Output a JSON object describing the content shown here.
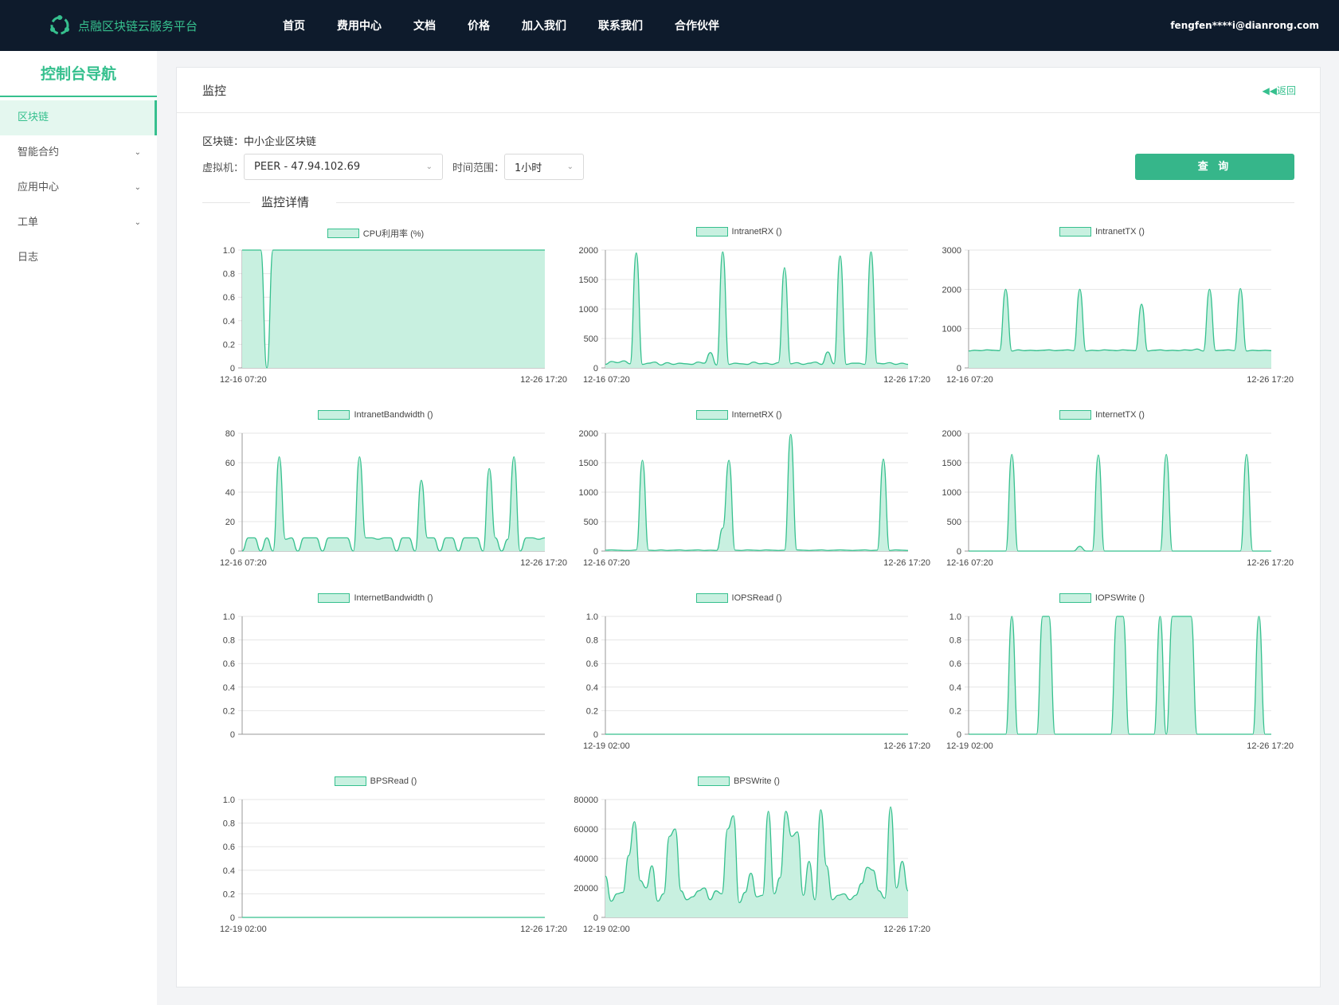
{
  "header": {
    "brand": "点融区块链云服务平台",
    "nav": [
      "首页",
      "费用中心",
      "文档",
      "价格",
      "加入我们",
      "联系我们",
      "合作伙伴"
    ],
    "user": "fengfen****i@dianrong.com"
  },
  "sidebar": {
    "title": "控制台导航",
    "items": [
      {
        "label": "区块链",
        "active": true,
        "expandable": false
      },
      {
        "label": "智能合约",
        "active": false,
        "expandable": true
      },
      {
        "label": "应用中心",
        "active": false,
        "expandable": true
      },
      {
        "label": "工单",
        "active": false,
        "expandable": true
      },
      {
        "label": "日志",
        "active": false,
        "expandable": false
      }
    ]
  },
  "main": {
    "title": "监控",
    "back": "返回",
    "chain_label": "区块链：",
    "chain_value": "中小企业区块链",
    "vm_label": "虚拟机：",
    "vm_value": "PEER - 47.94.102.69",
    "range_label": "时间范围：",
    "range_value": "1小时",
    "query": "查 询",
    "section": "监控详情"
  },
  "colors": {
    "accent": "#36c08e",
    "fill": "#c8f0e0",
    "topbar": "#0e1b2c"
  },
  "chart_data": [
    {
      "type": "area",
      "legend": "CPU利用率 (%)",
      "ylim": [
        0,
        1.0
      ],
      "yticks": [
        "0",
        "0.2",
        "0.4",
        "0.6",
        "0.8",
        "1.0"
      ],
      "xlabels": [
        "12-16 07:20",
        "12-26 17:20"
      ],
      "values": [
        1,
        1,
        1,
        1,
        0,
        1,
        1,
        1,
        1,
        1,
        1,
        1,
        1,
        1,
        1,
        1,
        1,
        1,
        1,
        1,
        1,
        1,
        1,
        1,
        1,
        1,
        1,
        1,
        1,
        1,
        1,
        1,
        1,
        1,
        1,
        1,
        1,
        1,
        1,
        1,
        1,
        1,
        1,
        1,
        1,
        1,
        1,
        1,
        1,
        1
      ]
    },
    {
      "type": "area",
      "legend": "IntranetRX ()",
      "ylim": [
        0,
        2000
      ],
      "yticks": [
        "0",
        "500",
        "1000",
        "1500",
        "2000"
      ],
      "xlabels": [
        "12-16 07:20",
        "12-26 17:20"
      ],
      "values": [
        60,
        110,
        90,
        120,
        70,
        1950,
        60,
        80,
        100,
        50,
        90,
        60,
        80,
        70,
        60,
        100,
        80,
        260,
        50,
        1970,
        60,
        80,
        70,
        60,
        100,
        70,
        80,
        60,
        90,
        1700,
        70,
        90,
        60,
        80,
        100,
        60,
        270,
        70,
        1900,
        60,
        80,
        80,
        60,
        1970,
        80,
        70,
        90,
        60,
        80,
        60
      ]
    },
    {
      "type": "area",
      "legend": "IntranetTX ()",
      "ylim": [
        0,
        3000
      ],
      "yticks": [
        "0",
        "1000",
        "2000",
        "3000"
      ],
      "xlabels": [
        "12-16 07:20",
        "12-26 17:20"
      ],
      "values": [
        430,
        450,
        440,
        460,
        450,
        440,
        2000,
        430,
        460,
        440,
        450,
        440,
        450,
        460,
        440,
        450,
        460,
        440,
        2000,
        430,
        450,
        440,
        460,
        450,
        440,
        460,
        450,
        440,
        1620,
        430,
        450,
        460,
        440,
        450,
        440,
        460,
        450,
        480,
        430,
        2000,
        440,
        450,
        460,
        440,
        2020,
        430,
        450,
        440,
        450,
        440
      ]
    },
    {
      "type": "area",
      "legend": "IntranetBandwidth ()",
      "ylim": [
        0,
        80
      ],
      "yticks": [
        "0",
        "20",
        "40",
        "60",
        "80"
      ],
      "xlabels": [
        "12-16 07:20",
        "12-26 17:20"
      ],
      "values": [
        0,
        9,
        9,
        0,
        9,
        0,
        64,
        8,
        9,
        0,
        9,
        9,
        9,
        0,
        9,
        9,
        9,
        9,
        0,
        64,
        9,
        9,
        8,
        9,
        9,
        0,
        9,
        9,
        0,
        48,
        9,
        9,
        0,
        9,
        9,
        0,
        9,
        9,
        9,
        0,
        56,
        9,
        0,
        8,
        64,
        0,
        9,
        9,
        8,
        9
      ]
    },
    {
      "type": "area",
      "legend": "InternetRX ()",
      "ylim": [
        0,
        2000
      ],
      "yticks": [
        "0",
        "500",
        "1000",
        "1500",
        "2000"
      ],
      "xlabels": [
        "12-16 07:20",
        "12-26 17:20"
      ],
      "values": [
        15,
        20,
        15,
        10,
        10,
        20,
        1540,
        15,
        10,
        20,
        10,
        15,
        20,
        10,
        15,
        20,
        10,
        15,
        10,
        390,
        1540,
        15,
        10,
        20,
        15,
        10,
        20,
        15,
        10,
        15,
        1980,
        20,
        15,
        10,
        15,
        20,
        10,
        15,
        20,
        15,
        10,
        15,
        20,
        10,
        15,
        1560,
        10,
        20,
        15,
        10
      ]
    },
    {
      "type": "area",
      "legend": "InternetTX ()",
      "ylim": [
        0,
        2000
      ],
      "yticks": [
        "0",
        "500",
        "1000",
        "1500",
        "2000"
      ],
      "xlabels": [
        "12-16 07:20",
        "12-26 17:20"
      ],
      "values": [
        0,
        0,
        0,
        0,
        0,
        0,
        0,
        1640,
        0,
        0,
        0,
        0,
        0,
        0,
        0,
        0,
        0,
        0,
        80,
        0,
        0,
        1630,
        0,
        0,
        0,
        0,
        0,
        0,
        0,
        0,
        0,
        0,
        1640,
        0,
        0,
        0,
        0,
        0,
        0,
        0,
        0,
        0,
        0,
        0,
        0,
        1640,
        0,
        0,
        0,
        0
      ]
    },
    {
      "type": "area",
      "legend": "InternetBandwidth ()",
      "ylim": [
        0,
        1.0
      ],
      "yticks": [
        "0",
        "0.2",
        "0.4",
        "0.6",
        "0.8",
        "1.0"
      ],
      "xlabels": [],
      "values": []
    },
    {
      "type": "area",
      "legend": "IOPSRead ()",
      "ylim": [
        0,
        1.0
      ],
      "yticks": [
        "0",
        "0.2",
        "0.4",
        "0.6",
        "0.8",
        "1.0"
      ],
      "xlabels": [
        "12-19 02:00",
        "12-26 17:20"
      ],
      "values": [
        0,
        0,
        0,
        0,
        0,
        0,
        0,
        0,
        0,
        0,
        0,
        0,
        0,
        0,
        0,
        0,
        0,
        0,
        0,
        0
      ]
    },
    {
      "type": "area",
      "legend": "IOPSWrite ()",
      "ylim": [
        0,
        1.0
      ],
      "yticks": [
        "0",
        "0.2",
        "0.4",
        "0.6",
        "0.8",
        "1.0"
      ],
      "xlabels": [
        "12-19 02:00",
        "12-26 17:20"
      ],
      "values": [
        0,
        0,
        0,
        0,
        0,
        0,
        0,
        1,
        0,
        0,
        0,
        0,
        1,
        1,
        0,
        0,
        0,
        0,
        0,
        0,
        0,
        0,
        0,
        0,
        1,
        1,
        0,
        0,
        0,
        0,
        0,
        1,
        0,
        1,
        1,
        1,
        1,
        0,
        0,
        0,
        0,
        0,
        0,
        0,
        0,
        0,
        0,
        1,
        0,
        0
      ]
    },
    {
      "type": "area",
      "legend": "BPSRead ()",
      "ylim": [
        0,
        1.0
      ],
      "yticks": [
        "0",
        "0.2",
        "0.4",
        "0.6",
        "0.8",
        "1.0"
      ],
      "xlabels": [
        "12-19 02:00",
        "12-26 17:20"
      ],
      "values": [
        0,
        0,
        0,
        0,
        0,
        0,
        0,
        0,
        0,
        0,
        0,
        0,
        0,
        0,
        0,
        0,
        0,
        0,
        0,
        0
      ]
    },
    {
      "type": "area",
      "legend": "BPSWrite ()",
      "ylim": [
        0,
        80000
      ],
      "yticks": [
        "0",
        "20000",
        "40000",
        "60000",
        "80000"
      ],
      "xlabels": [
        "12-19 02:00",
        "12-26 17:20"
      ],
      "values": [
        28000,
        11000,
        16000,
        17000,
        42000,
        65000,
        25000,
        20000,
        35000,
        11000,
        16000,
        55000,
        60000,
        18000,
        12000,
        14000,
        18000,
        20000,
        12000,
        18000,
        16000,
        60000,
        69000,
        10000,
        17000,
        30000,
        14000,
        15000,
        72000,
        16000,
        27000,
        72000,
        55000,
        58000,
        15000,
        38000,
        12000,
        73000,
        35000,
        12000,
        15000,
        16000,
        12000,
        15000,
        23000,
        34000,
        32000,
        18000,
        13000,
        75000,
        20000,
        38000,
        18000
      ]
    }
  ]
}
